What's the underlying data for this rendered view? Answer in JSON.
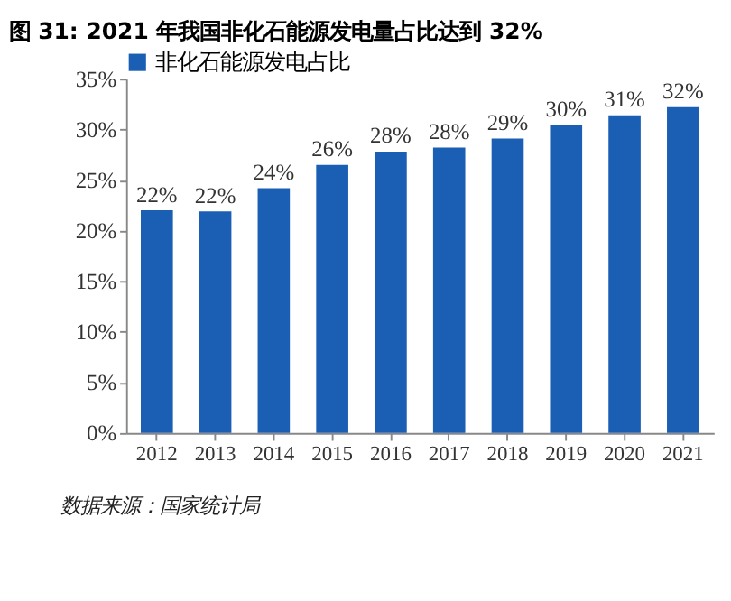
{
  "chart_data": {
    "type": "bar",
    "title": "图 31: 2021 年我国非化石能源发电量占比达到 32%",
    "categories": [
      "2012",
      "2013",
      "2014",
      "2015",
      "2016",
      "2017",
      "2018",
      "2019",
      "2020",
      "2021"
    ],
    "series": [
      {
        "name": "非化石能源发电占比",
        "color": "#1a5fb4",
        "values": [
          22.0,
          21.9,
          24.2,
          26.5,
          27.8,
          28.2,
          29.1,
          30.4,
          31.4,
          32.2
        ],
        "value_labels": [
          "22%",
          "22%",
          "24%",
          "26%",
          "28%",
          "28%",
          "29%",
          "30%",
          "31%",
          "32%"
        ]
      }
    ],
    "ylim": [
      0,
      35
    ],
    "yticks": [
      {
        "value": 0,
        "label": "0%"
      },
      {
        "value": 5,
        "label": "5%"
      },
      {
        "value": 10,
        "label": "10%"
      },
      {
        "value": 15,
        "label": "15%"
      },
      {
        "value": 20,
        "label": "20%"
      },
      {
        "value": 25,
        "label": "25%"
      },
      {
        "value": 30,
        "label": "30%"
      },
      {
        "value": 35,
        "label": "35%"
      }
    ],
    "grid": false,
    "legend": "top",
    "annotations": [
      "数据来源：国家统计局"
    ]
  }
}
